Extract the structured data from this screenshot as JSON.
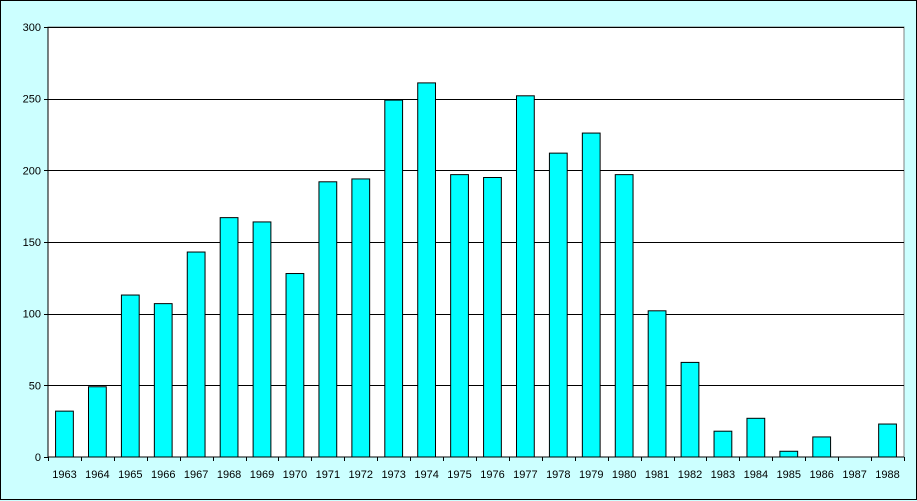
{
  "chart_data": {
    "type": "bar",
    "title": "",
    "xlabel": "",
    "ylabel": "",
    "ylim": [
      0,
      300
    ],
    "yticks": [
      0,
      50,
      100,
      150,
      200,
      250,
      300
    ],
    "grid": true,
    "legend": "none",
    "categories": [
      "1963",
      "1964",
      "1965",
      "1966",
      "1967",
      "1968",
      "1969",
      "1970",
      "1971",
      "1972",
      "1973",
      "1974",
      "1975",
      "1976",
      "1977",
      "1978",
      "1979",
      "1980",
      "1981",
      "1982",
      "1983",
      "1984",
      "1985",
      "1986",
      "1987",
      "1988"
    ],
    "values": [
      32,
      49,
      113,
      107,
      143,
      167,
      164,
      128,
      192,
      194,
      249,
      261,
      197,
      195,
      252,
      212,
      226,
      197,
      102,
      66,
      18,
      27,
      4,
      14,
      0,
      23
    ],
    "colors": {
      "bar_fill": "#00ffff",
      "bar_stroke": "#000000",
      "plot_background": "#ffffff",
      "chart_background": "#ccffff",
      "gridline": "#000000"
    }
  }
}
